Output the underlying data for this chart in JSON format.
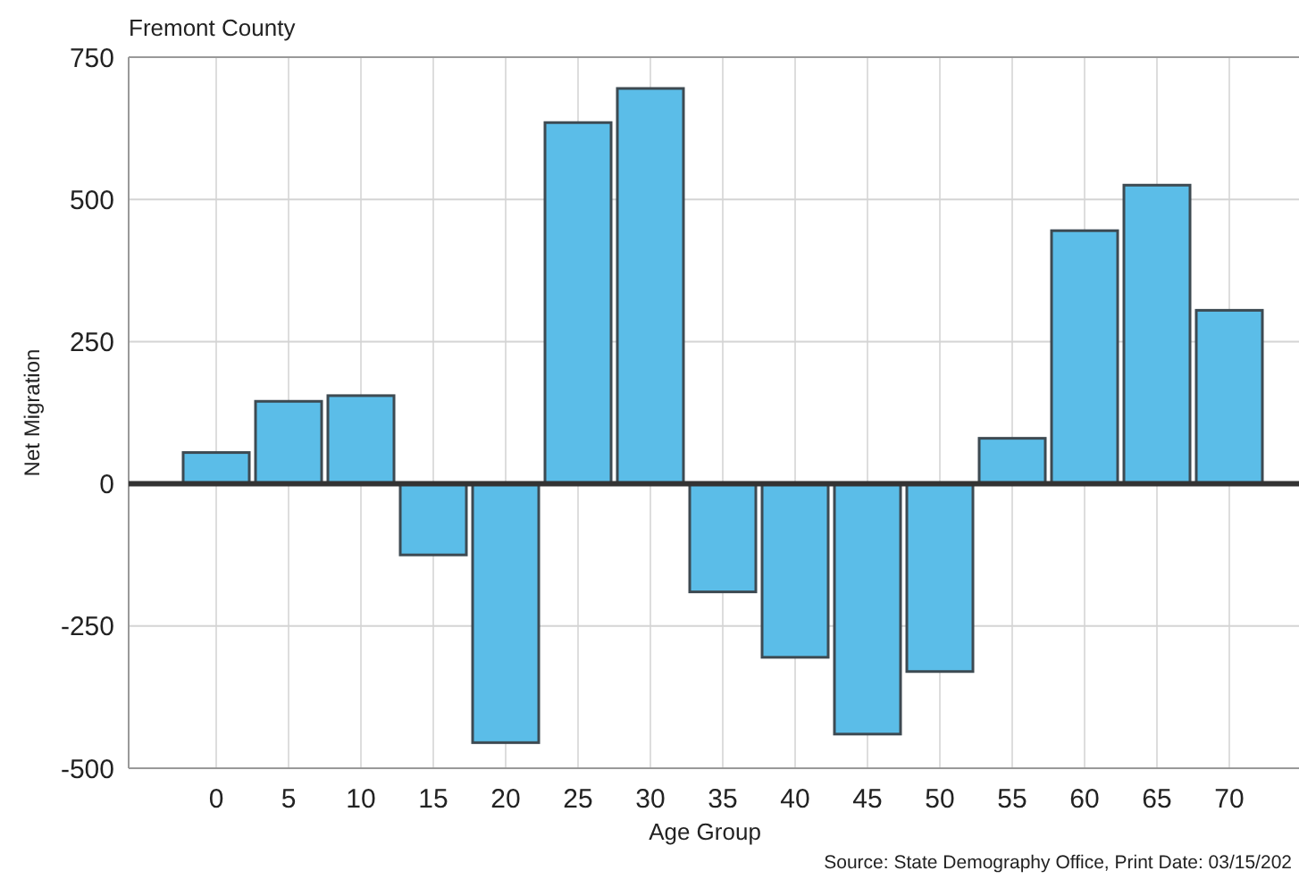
{
  "chart_data": {
    "type": "bar",
    "subtitle": "Fremont County",
    "xlabel": "Age Group",
    "ylabel": "Net Migration",
    "categories": [
      "0",
      "5",
      "10",
      "15",
      "20",
      "25",
      "30",
      "35",
      "40",
      "45",
      "50",
      "55",
      "60",
      "65",
      "70"
    ],
    "values": [
      55,
      145,
      155,
      -125,
      -455,
      635,
      695,
      -190,
      -305,
      -440,
      -330,
      80,
      445,
      525,
      305
    ],
    "color": "#5bbde8",
    "ylim": [
      -500,
      750
    ],
    "yticks": [
      -500,
      -250,
      0,
      250,
      500,
      750
    ],
    "grid": true,
    "annotations": [
      "Source: State Demography Office, Print Date: 03/15/202"
    ]
  }
}
